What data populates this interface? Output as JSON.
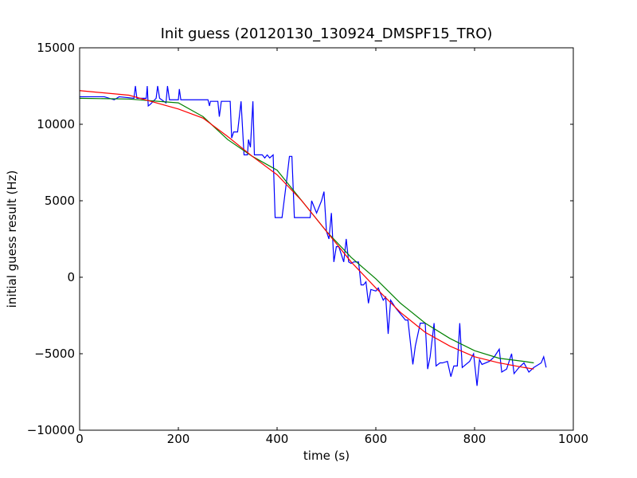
{
  "chart_data": {
    "type": "line",
    "title": "Init guess (20120130_130924_DMSPF15_TRO)",
    "xlabel": "time (s)",
    "ylabel": "initial guess result (Hz)",
    "xlim": [
      0,
      1000
    ],
    "xticks": [
      0,
      200,
      400,
      600,
      800,
      1000
    ],
    "ylim": [
      -10000,
      15000
    ],
    "yticks": [
      {
        "value": -10000,
        "label": "−10000"
      },
      {
        "value": -5000,
        "label": "−5000"
      },
      0,
      5000,
      10000,
      15000
    ],
    "grid": false,
    "series": [
      {
        "color": "#0000ff",
        "x": [
          0,
          50,
          70,
          80,
          110,
          113,
          116,
          135,
          137,
          139,
          143,
          155,
          158,
          162,
          175,
          178,
          182,
          200,
          202,
          205,
          260,
          263,
          265,
          280,
          283,
          287,
          305,
          308,
          312,
          320,
          327,
          333,
          340,
          342,
          346,
          351,
          354,
          370,
          375,
          380,
          385,
          392,
          396,
          410,
          415,
          420,
          425,
          430,
          435,
          460,
          467,
          470,
          480,
          490,
          495,
          500,
          505,
          510,
          515,
          520,
          525,
          530,
          535,
          540,
          545,
          550,
          555,
          565,
          570,
          575,
          580,
          585,
          590,
          600,
          605,
          615,
          620,
          625,
          630,
          640,
          650,
          660,
          665,
          675,
          680,
          690,
          700,
          705,
          710,
          718,
          722,
          730,
          735,
          745,
          752,
          758,
          765,
          770,
          775,
          790,
          798,
          805,
          810,
          815,
          830,
          840,
          850,
          855,
          865,
          875,
          880,
          890,
          900,
          910,
          920,
          935,
          940,
          945
        ],
        "values": [
          11800,
          11800,
          11600,
          11800,
          11700,
          12500,
          11700,
          11700,
          12500,
          11200,
          11300,
          11700,
          12500,
          11700,
          11400,
          12500,
          11600,
          11600,
          12300,
          11600,
          11600,
          11200,
          11500,
          11500,
          10500,
          11500,
          11500,
          9100,
          9500,
          9500,
          11500,
          8000,
          8000,
          9000,
          8500,
          11500,
          8000,
          8000,
          7800,
          8000,
          7800,
          8000,
          3900,
          3900,
          5200,
          6500,
          7900,
          7900,
          3900,
          3900,
          3900,
          5000,
          4200,
          5000,
          5600,
          3000,
          2500,
          4200,
          1000,
          2000,
          2000,
          1500,
          1000,
          2500,
          1000,
          900,
          1000,
          1000,
          -500,
          -500,
          -300,
          -1700,
          -800,
          -900,
          -700,
          -1500,
          -1300,
          -3700,
          -1500,
          -2000,
          -2400,
          -2800,
          -2800,
          -5700,
          -4500,
          -3000,
          -3000,
          -6000,
          -5200,
          -3000,
          -5800,
          -5600,
          -5600,
          -5500,
          -6500,
          -5800,
          -5800,
          -3000,
          -5900,
          -5500,
          -5000,
          -7100,
          -5400,
          -5700,
          -5500,
          -5200,
          -4700,
          -6200,
          -6000,
          -5000,
          -6300,
          -5900,
          -5600,
          -6200,
          -5900,
          -5600,
          -5200,
          -5900
        ]
      },
      {
        "color": "#008000",
        "x": [
          0,
          100,
          200,
          250,
          300,
          350,
          400,
          450,
          500,
          550,
          600,
          650,
          700,
          750,
          800,
          850,
          900,
          920
        ],
        "values": [
          11700,
          11650,
          11400,
          10500,
          9000,
          7900,
          7000,
          5000,
          3000,
          1300,
          -100,
          -1700,
          -3000,
          -4000,
          -4800,
          -5300,
          -5500,
          -5600
        ]
      },
      {
        "color": "#ff0000",
        "x": [
          0,
          100,
          200,
          250,
          300,
          350,
          400,
          450,
          500,
          550,
          600,
          650,
          700,
          750,
          800,
          850,
          900,
          920
        ],
        "values": [
          12200,
          11900,
          11000,
          10400,
          9200,
          7900,
          6700,
          5000,
          3000,
          1000,
          -700,
          -2300,
          -3600,
          -4500,
          -5200,
          -5600,
          -5900,
          -6000
        ]
      }
    ]
  }
}
